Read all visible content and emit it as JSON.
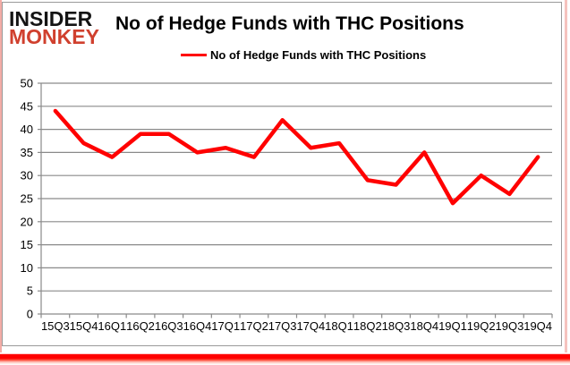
{
  "logo": {
    "line1": "INSIDER",
    "line2": "MONKEY"
  },
  "header": {
    "title": "No of Hedge Funds with THC Positions"
  },
  "legend": {
    "label": "No of Hedge Funds with THC Positions"
  },
  "colors": {
    "series_line": "#ff0000",
    "logo_black": "#141414",
    "logo_red": "#d0402e",
    "grid": "#8a8a8a",
    "axis": "#8a8a8a",
    "text": "#000000",
    "frame_border": "#9a9a9a",
    "frame_pink": "#f3aca6",
    "bottom_bar": "#ff0000"
  },
  "chart_data": {
    "type": "line",
    "title": "No of Hedge Funds with THC Positions",
    "categories": [
      "15Q3",
      "15Q4",
      "16Q1",
      "16Q2",
      "16Q3",
      "16Q4",
      "17Q1",
      "17Q2",
      "17Q3",
      "17Q4",
      "18Q1",
      "18Q2",
      "18Q3",
      "18Q4",
      "19Q1",
      "19Q2",
      "19Q3",
      "19Q4"
    ],
    "series": [
      {
        "name": "No of Hedge Funds with THC Positions",
        "values": [
          44,
          37,
          34,
          39,
          39,
          35,
          36,
          34,
          42,
          36,
          37,
          29,
          28,
          35,
          24,
          30,
          26,
          34
        ]
      }
    ],
    "xlabel": "",
    "ylabel": "",
    "ylim": [
      0,
      50
    ],
    "ytick_step": 5,
    "grid": true,
    "legend_position": "top-center"
  }
}
